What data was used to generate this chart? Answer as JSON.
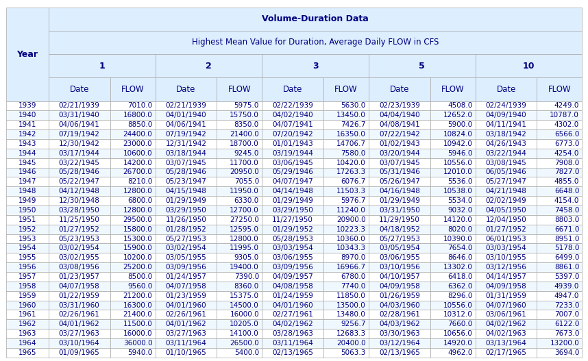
{
  "title1": "Volume-Duration Data",
  "title2": "Highest Mean Value for Duration, Average Daily FLOW in CFS",
  "col_groups": [
    "1",
    "2",
    "3",
    "5",
    "10"
  ],
  "col_headers": [
    "Year",
    "Date",
    "FLOW",
    "Date",
    "FLOW",
    "Date",
    "FLOW",
    "Date",
    "FLOW",
    "Date",
    "FLOW"
  ],
  "rows": [
    [
      1939,
      "02/21/1939",
      7010.0,
      "02/21/1939",
      5975.0,
      "02/22/1939",
      5630.0,
      "02/23/1939",
      4508.0,
      "02/24/1939",
      4249.0
    ],
    [
      1940,
      "03/31/1940",
      16800.0,
      "04/01/1940",
      15750.0,
      "04/02/1940",
      13450.0,
      "04/04/1940",
      12652.0,
      "04/09/1940",
      10787.0
    ],
    [
      1941,
      "04/06/1941",
      8850.0,
      "04/06/1941",
      8350.0,
      "04/07/1941",
      7426.7,
      "04/08/1941",
      5900.0,
      "04/11/1941",
      4302.0
    ],
    [
      1942,
      "07/19/1942",
      24400.0,
      "07/19/1942",
      21400.0,
      "07/20/1942",
      16350.0,
      "07/22/1942",
      10824.0,
      "03/18/1942",
      6566.0
    ],
    [
      1943,
      "12/30/1942",
      23000.0,
      "12/31/1942",
      18700.0,
      "01/01/1943",
      14706.7,
      "01/02/1943",
      10942.0,
      "04/26/1943",
      6773.0
    ],
    [
      1944,
      "03/17/1944",
      10600.0,
      "03/18/1944",
      9245.0,
      "03/19/1944",
      7580.0,
      "03/20/1944",
      5946.0,
      "03/22/1944",
      4254.0
    ],
    [
      1945,
      "03/22/1945",
      14200.0,
      "03/07/1945",
      11700.0,
      "03/06/1945",
      10420.0,
      "03/07/1945",
      10556.0,
      "03/08/1945",
      7908.0
    ],
    [
      1946,
      "05/28/1946",
      26700.0,
      "05/28/1946",
      20950.0,
      "05/29/1946",
      17263.3,
      "05/31/1946",
      12010.0,
      "06/05/1946",
      7827.0
    ],
    [
      1947,
      "05/22/1947",
      8210.0,
      "05/23/1947",
      7055.0,
      "04/07/1947",
      6076.7,
      "05/26/1947",
      5536.0,
      "05/27/1947",
      4855.0
    ],
    [
      1948,
      "04/12/1948",
      12800.0,
      "04/15/1948",
      11950.0,
      "04/14/1948",
      11503.3,
      "04/16/1948",
      10538.0,
      "04/21/1948",
      6648.0
    ],
    [
      1949,
      "12/30/1948",
      6800.0,
      "01/29/1949",
      6330.0,
      "01/29/1949",
      5976.7,
      "01/29/1949",
      5534.0,
      "02/02/1949",
      4154.0
    ],
    [
      1950,
      "03/28/1950",
      12800.0,
      "03/29/1950",
      12700.0,
      "03/29/1950",
      11240.0,
      "03/31/1950",
      9032.0,
      "04/05/1950",
      7458.0
    ],
    [
      1951,
      "11/25/1950",
      29500.0,
      "11/26/1950",
      27250.0,
      "11/27/1950",
      20900.0,
      "11/29/1950",
      14120.0,
      "12/04/1950",
      8803.0
    ],
    [
      1952,
      "01/27/1952",
      15800.0,
      "01/28/1952",
      12595.0,
      "01/29/1952",
      10223.3,
      "04/18/1952",
      8020.0,
      "01/27/1952",
      6671.0
    ],
    [
      1953,
      "05/23/1953",
      15300.0,
      "05/27/1953",
      12800.0,
      "05/28/1953",
      10360.0,
      "05/27/1953",
      10390.0,
      "06/01/1953",
      8951.0
    ],
    [
      1954,
      "03/02/1954",
      15900.0,
      "03/02/1954",
      11995.0,
      "03/03/1954",
      10343.3,
      "03/05/1954",
      7654.0,
      "03/03/1954",
      5178.0
    ],
    [
      1955,
      "03/02/1955",
      10200.0,
      "03/05/1955",
      9305.0,
      "03/06/1955",
      8970.0,
      "03/06/1955",
      8646.0,
      "03/10/1955",
      6499.0
    ],
    [
      1956,
      "03/08/1956",
      25200.0,
      "03/09/1956",
      19400.0,
      "03/09/1956",
      16966.7,
      "03/10/1956",
      13302.0,
      "03/12/1956",
      8861.0
    ],
    [
      1957,
      "01/23/1957",
      8500.0,
      "01/24/1957",
      7390.0,
      "04/09/1957",
      6780.0,
      "04/10/1957",
      6418.0,
      "04/14/1957",
      5397.0
    ],
    [
      1958,
      "04/07/1958",
      9560.0,
      "04/07/1958",
      8360.0,
      "04/08/1958",
      7740.0,
      "04/09/1958",
      6362.0,
      "04/09/1958",
      4939.0
    ],
    [
      1959,
      "01/22/1959",
      21200.0,
      "01/23/1959",
      15375.0,
      "01/24/1959",
      11850.0,
      "01/26/1959",
      8296.0,
      "01/31/1959",
      4947.0
    ],
    [
      1960,
      "03/31/1960",
      16300.0,
      "04/01/1960",
      14500.0,
      "04/01/1960",
      13500.0,
      "04/03/1960",
      10556.0,
      "04/07/1960",
      7233.0
    ],
    [
      1961,
      "02/26/1961",
      21400.0,
      "02/26/1961",
      16000.0,
      "02/27/1961",
      13480.0,
      "02/28/1961",
      10312.0,
      "03/06/1961",
      7007.0
    ],
    [
      1962,
      "04/01/1962",
      11500.0,
      "04/01/1962",
      10205.0,
      "04/02/1962",
      9256.7,
      "04/03/1962",
      7660.0,
      "04/02/1962",
      6122.0
    ],
    [
      1963,
      "03/27/1963",
      16000.0,
      "03/27/1963",
      14100.0,
      "03/28/1963",
      12683.3,
      "03/30/1963",
      10656.0,
      "04/02/1963",
      7673.0
    ],
    [
      1964,
      "03/10/1964",
      36000.0,
      "03/11/1964",
      26500.0,
      "03/11/1964",
      20400.0,
      "03/12/1964",
      14920.0,
      "03/13/1964",
      13200.0
    ],
    [
      1965,
      "01/09/1965",
      5940.0,
      "01/10/1965",
      5400.0,
      "02/13/1965",
      5063.3,
      "02/13/1965",
      4962.0,
      "02/17/1965",
      3694.0
    ]
  ],
  "header_bg": "#DDEEFF",
  "row_bg_even": "#FFFFFF",
  "row_bg_odd": "#F0F8FF",
  "border_color": "#AAAAAA",
  "text_color": "#000080",
  "header_text_color": "#000080"
}
